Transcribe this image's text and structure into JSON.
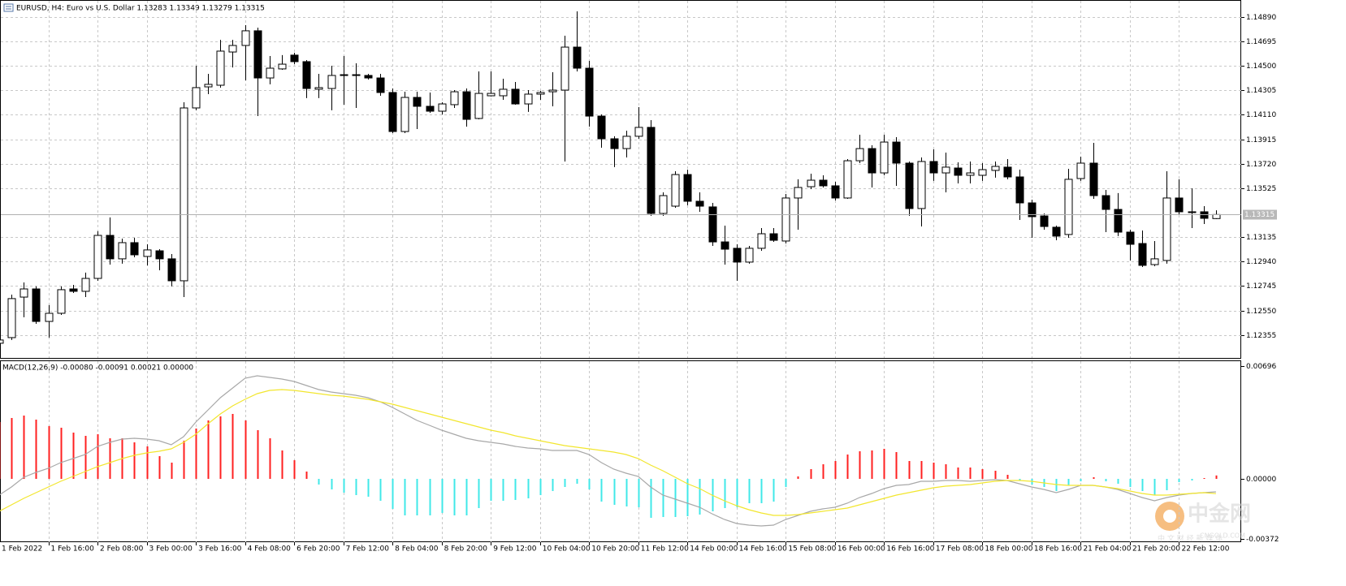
{
  "header": {
    "symbol_title": "EURUSD, H4:  Euro vs U.S. Dollar   1.13283 1.13349 1.13279 1.13315"
  },
  "watermark": {
    "brand": "中金网",
    "domain": "CNGOLD.COM",
    "tagline": "中 文 财 经 新 媒 体"
  },
  "chart_data": [
    {
      "type": "candlestick",
      "up_color": "#ffffff",
      "down_color": "#000000",
      "wick_color": "#000000",
      "categories": [
        "1 Feb 2022",
        null,
        null,
        null,
        "1 Feb 16:00",
        null,
        null,
        null,
        "2 Feb 08:00",
        null,
        null,
        null,
        "3 Feb 00:00",
        null,
        null,
        null,
        "3 Feb 16:00",
        null,
        null,
        null,
        "4 Feb 08:00",
        null,
        null,
        null,
        "6 Feb 20:00",
        null,
        null,
        null,
        "7 Feb 12:00",
        null,
        null,
        null,
        "8 Feb 04:00",
        null,
        null,
        null,
        "8 Feb 20:00",
        null,
        null,
        null,
        "9 Feb 12:00",
        null,
        null,
        null,
        "10 Feb 04:00",
        null,
        null,
        null,
        "10 Feb 20:00",
        null,
        null,
        null,
        "11 Feb 12:00",
        null,
        null,
        null,
        "14 Feb 00:00",
        null,
        null,
        null,
        "14 Feb 16:00",
        null,
        null,
        null,
        "15 Feb 08:00",
        null,
        null,
        null,
        "16 Feb 00:00",
        null,
        null,
        null,
        "16 Feb 16:00",
        null,
        null,
        null,
        "17 Feb 08:00",
        null,
        null,
        null,
        "18 Feb 00:00",
        null,
        null,
        null,
        "18 Feb 16:00",
        null,
        null,
        null,
        "21 Feb 04:00",
        null,
        null,
        null,
        "21 Feb 20:00",
        null,
        null,
        null,
        "22 Feb 12:00",
        null,
        null,
        null
      ],
      "open": [
        1.12289,
        1.12334,
        1.12657,
        1.12722,
        1.12463,
        1.12528,
        1.12722,
        1.12703,
        1.12806,
        1.13149,
        1.12962,
        1.13091,
        1.12981,
        1.13026,
        1.12962,
        1.12787,
        1.14165,
        1.14333,
        1.14346,
        1.14611,
        1.14663,
        1.1478,
        1.14404,
        1.14476,
        1.14586,
        1.14534,
        1.14314,
        1.1432,
        1.14424,
        1.1443,
        1.14424,
        1.14404,
        1.14288,
        1.13977,
        1.14249,
        1.14178,
        1.14139,
        1.14191,
        1.14294,
        1.14081,
        1.14262,
        1.14262,
        1.14314,
        1.14197,
        1.14275,
        1.14294,
        1.14307,
        1.1465,
        1.14482,
        1.141,
        1.13919,
        1.13841,
        1.13939,
        1.1401,
        1.13324,
        1.13382,
        1.13634,
        1.13421,
        1.13376,
        1.13097,
        1.13046,
        1.12936,
        1.13046,
        1.13162,
        1.13104,
        1.13447,
        1.13537,
        1.13589,
        1.13544,
        1.13447,
        1.13744,
        1.13841,
        1.13647,
        1.13893,
        1.13725,
        1.13363,
        1.13738,
        1.13647,
        1.13686,
        1.13628,
        1.13628,
        1.13667,
        1.13693,
        1.13615,
        1.13408,
        1.13304,
        1.13214,
        1.13156,
        1.13602,
        1.13725,
        1.13466,
        1.13356,
        1.13175,
        1.13084,
        1.12916,
        1.12949,
        1.13447,
        1.13337,
        1.13337,
        1.13283
      ],
      "high": [
        1.12334,
        1.12677,
        1.12774,
        1.12742,
        1.12593,
        1.12742,
        1.12754,
        1.12852,
        1.13182,
        1.13292,
        1.13123,
        1.1313,
        1.13078,
        1.13039,
        1.13,
        1.1421,
        1.14501,
        1.14437,
        1.14708,
        1.14708,
        1.14825,
        1.14805,
        1.14579,
        1.14586,
        1.14605,
        1.14547,
        1.14437,
        1.14501,
        1.14579,
        1.14521,
        1.14437,
        1.14437,
        1.1432,
        1.14294,
        1.14294,
        1.14288,
        1.1421,
        1.14307,
        1.1432,
        1.14456,
        1.14456,
        1.14398,
        1.14372,
        1.14307,
        1.14301,
        1.1445,
        1.14741,
        1.14935,
        1.1454,
        1.14113,
        1.13939,
        1.13984,
        1.14171,
        1.14068,
        1.13492,
        1.1366,
        1.13673,
        1.13492,
        1.13408,
        1.13227,
        1.13078,
        1.13065,
        1.13207,
        1.13207,
        1.13479,
        1.13596,
        1.13641,
        1.13628,
        1.13576,
        1.13757,
        1.13951,
        1.13867,
        1.13951,
        1.13932,
        1.13738,
        1.1377,
        1.13835,
        1.13809,
        1.13731,
        1.13738,
        1.13725,
        1.13738,
        1.13757,
        1.13673,
        1.13434,
        1.13324,
        1.13227,
        1.1368,
        1.13777,
        1.13887,
        1.13511,
        1.13486,
        1.13194,
        1.13188,
        1.13104,
        1.1366,
        1.13596,
        1.13524,
        1.13382,
        1.13349
      ],
      "low": [
        1.12269,
        1.12315,
        1.12496,
        1.12444,
        1.12334,
        1.12515,
        1.1269,
        1.12657,
        1.12787,
        1.12916,
        1.12923,
        1.12974,
        1.1291,
        1.12871,
        1.12742,
        1.12657,
        1.14146,
        1.14275,
        1.14327,
        1.14488,
        1.14385,
        1.141,
        1.14353,
        1.14469,
        1.14514,
        1.14243,
        1.14243,
        1.14146,
        1.14191,
        1.14165,
        1.14391,
        1.14262,
        1.13964,
        1.13964,
        1.13997,
        1.14126,
        1.14113,
        1.14165,
        1.14016,
        1.14074,
        1.14256,
        1.1423,
        1.14191,
        1.14133,
        1.1423,
        1.14178,
        1.13738,
        1.14456,
        1.14016,
        1.13848,
        1.13693,
        1.1377,
        1.13919,
        1.13304,
        1.13304,
        1.13369,
        1.13389,
        1.13337,
        1.13065,
        1.12916,
        1.12787,
        1.12923,
        1.13026,
        1.13097,
        1.13084,
        1.13194,
        1.13518,
        1.13531,
        1.13427,
        1.1344,
        1.13725,
        1.13531,
        1.13628,
        1.13544,
        1.13304,
        1.1322,
        1.13583,
        1.13492,
        1.13563,
        1.13563,
        1.13583,
        1.13609,
        1.13596,
        1.13272,
        1.1313,
        1.13194,
        1.1311,
        1.1313,
        1.13583,
        1.1344,
        1.13175,
        1.13143,
        1.12949,
        1.12897,
        1.12903,
        1.12923,
        1.13317,
        1.13207,
        1.1324,
        1.13279
      ],
      "close": [
        1.12315,
        1.12645,
        1.12722,
        1.12463,
        1.12528,
        1.12716,
        1.12703,
        1.12806,
        1.13149,
        1.12962,
        1.13091,
        1.12994,
        1.13033,
        1.12962,
        1.12787,
        1.14165,
        1.14327,
        1.14353,
        1.14618,
        1.14663,
        1.1478,
        1.14404,
        1.14482,
        1.14514,
        1.14534,
        1.1432,
        1.14327,
        1.14424,
        1.1443,
        1.1443,
        1.14404,
        1.14288,
        1.13977,
        1.14249,
        1.14178,
        1.14139,
        1.14197,
        1.14294,
        1.14074,
        1.14281,
        1.14281,
        1.14314,
        1.14197,
        1.14275,
        1.14288,
        1.14307,
        1.1465,
        1.14482,
        1.141,
        1.13919,
        1.13841,
        1.13939,
        1.1401,
        1.13324,
        1.13466,
        1.13634,
        1.13421,
        1.13382,
        1.13097,
        1.13039,
        1.12936,
        1.13046,
        1.13162,
        1.1311,
        1.13447,
        1.13531,
        1.13589,
        1.13544,
        1.13447,
        1.13744,
        1.13841,
        1.13647,
        1.13893,
        1.13725,
        1.13363,
        1.13738,
        1.13647,
        1.13693,
        1.13628,
        1.13647,
        1.13673,
        1.13699,
        1.13615,
        1.13408,
        1.13298,
        1.1322,
        1.13143,
        1.13596,
        1.13725,
        1.13466,
        1.13356,
        1.13175,
        1.13078,
        1.1291,
        1.12962,
        1.13447,
        1.13337,
        1.13337,
        1.13285,
        1.13315
      ],
      "ylim": [
        1.12172,
        1.15019
      ],
      "yticks": [
        {
          "value": 1.1489,
          "label": "1.14890"
        },
        {
          "value": 1.14695,
          "label": "1.14695"
        },
        {
          "value": 1.145,
          "label": "1.14500"
        },
        {
          "value": 1.14305,
          "label": "1.14305"
        },
        {
          "value": 1.1411,
          "label": "1.14110"
        },
        {
          "value": 1.13915,
          "label": "1.13915"
        },
        {
          "value": 1.1372,
          "label": "1.13720"
        },
        {
          "value": 1.13525,
          "label": "1.13525"
        },
        {
          "value": 1.13135,
          "label": "1.13135"
        },
        {
          "value": 1.1294,
          "label": "1.12940"
        },
        {
          "value": 1.12745,
          "label": "1.12745"
        },
        {
          "value": 1.1255,
          "label": "1.12550"
        },
        {
          "value": 1.12355,
          "label": "1.12355"
        }
      ],
      "last_price": {
        "value": 1.13315,
        "label": "1.13315"
      },
      "grid": true
    },
    {
      "type": "macd",
      "title": "MACD(12,26,9) -0.00080 -0.00091 0.00021 0.00000",
      "ylim": [
        -0.0039,
        0.00725
      ],
      "yticks": [
        {
          "value": 0.00696,
          "label": "0.00696"
        },
        {
          "value": 0,
          "label": "0.00000"
        },
        {
          "value": -0.00372,
          "label": "-0.00372"
        }
      ],
      "series": [
        {
          "type": "bar",
          "color": "#ff2020",
          "negative_color": "#40e8e8",
          "values": [
            0.0035,
            0.00375,
            0.0039,
            0.00365,
            0.00325,
            0.00315,
            0.00285,
            0.00265,
            0.00275,
            0.0025,
            0.0025,
            0.00225,
            0.002,
            0.0014,
            0.001,
            0.00235,
            0.0031,
            0.0036,
            0.00385,
            0.004,
            0.0036,
            0.003,
            0.0025,
            0.00175,
            0.00115,
            0.00045,
            -0.00035,
            -0.00065,
            -0.00085,
            -0.001,
            -0.0011,
            -0.00135,
            -0.00185,
            -0.00225,
            -0.00225,
            -0.00225,
            -0.0021,
            -0.00225,
            -0.00225,
            -0.0018,
            -0.00135,
            -0.00135,
            -0.0013,
            -0.0012,
            -0.001,
            -0.00075,
            -0.0005,
            -0.0003,
            -0.00065,
            -0.0014,
            -0.0016,
            -0.0017,
            -0.00175,
            -0.0024,
            -0.00235,
            -0.00235,
            -0.0023,
            -0.0022,
            -0.002,
            -0.0018,
            -0.00175,
            -0.0015,
            -0.0015,
            -0.0014,
            -0.0005,
            0.00015,
            0.0006,
            0.0009,
            0.0011,
            0.0015,
            0.0017,
            0.00175,
            0.00185,
            0.00165,
            0.0011,
            0.0011,
            0.001,
            0.0009,
            0.0007,
            0.0007,
            0.0006,
            0.0005,
            0.00025,
            -0.0001,
            -0.00035,
            -0.0005,
            -0.00075,
            -0.0004,
            -0.00015,
            0.0001,
            -0.00015,
            -0.0003,
            -0.0005,
            -0.00075,
            -0.001,
            -0.0007,
            -0.0002,
            -0.0001,
            5e-05,
            0.00021
          ]
        },
        {
          "type": "line",
          "color": "#a8a8a8",
          "values": [
            -0.001,
            -0.0005,
            0.0001,
            0.0004,
            0.00065,
            0.001,
            0.00125,
            0.0015,
            0.002,
            0.00225,
            0.00245,
            0.0025,
            0.00245,
            0.00235,
            0.0021,
            0.0026,
            0.0035,
            0.00425,
            0.005,
            0.0056,
            0.0062,
            0.00635,
            0.00625,
            0.00615,
            0.006,
            0.00575,
            0.0055,
            0.00535,
            0.00525,
            0.00515,
            0.005,
            0.00475,
            0.0044,
            0.004,
            0.0036,
            0.0033,
            0.003,
            0.00275,
            0.0025,
            0.00235,
            0.00225,
            0.00215,
            0.002,
            0.0019,
            0.00185,
            0.00175,
            0.00175,
            0.00175,
            0.0015,
            0.001,
            0.0006,
            0.00035,
            0.00015,
            -0.0005,
            -0.001,
            -0.00125,
            -0.0015,
            -0.00175,
            -0.00215,
            -0.0025,
            -0.00275,
            -0.00285,
            -0.0029,
            -0.00285,
            -0.0025,
            -0.00225,
            -0.002,
            -0.00185,
            -0.00175,
            -0.0015,
            -0.00115,
            -0.0009,
            -0.0006,
            -0.0004,
            -0.00035,
            -0.00015,
            -0.00015,
            -0.0001,
            -0.0001,
            -0.00015,
            -0.0001,
            -5e-05,
            -0.0001,
            -0.0003,
            -0.0005,
            -0.00065,
            -0.00085,
            -0.00065,
            -0.0004,
            -0.0004,
            -0.0005,
            -0.00065,
            -0.0009,
            -0.00115,
            -0.00135,
            -0.00115,
            -0.001,
            -0.0009,
            -0.00085,
            -0.0008
          ]
        },
        {
          "type": "line",
          "color": "#f2e62e",
          "values": [
            -0.002,
            -0.0016,
            -0.0012,
            -0.00085,
            -0.0005,
            -0.00015,
            0.00015,
            0.00045,
            0.00075,
            0.001,
            0.00125,
            0.00145,
            0.0016,
            0.0017,
            0.00185,
            0.00225,
            0.00275,
            0.0034,
            0.004,
            0.0045,
            0.0049,
            0.00525,
            0.00545,
            0.0055,
            0.00545,
            0.00535,
            0.00525,
            0.00515,
            0.0051,
            0.005,
            0.0049,
            0.00475,
            0.0046,
            0.0044,
            0.0042,
            0.004,
            0.0038,
            0.0036,
            0.0034,
            0.0032,
            0.003,
            0.00285,
            0.00265,
            0.0025,
            0.00235,
            0.0022,
            0.00205,
            0.00195,
            0.00185,
            0.00175,
            0.00165,
            0.0015,
            0.00125,
            0.00085,
            0.0005,
            0.0001,
            -0.0003,
            -0.0006,
            -0.001,
            -0.00135,
            -0.00165,
            -0.0019,
            -0.0021,
            -0.00225,
            -0.00225,
            -0.0022,
            -0.0021,
            -0.002,
            -0.0019,
            -0.0018,
            -0.0016,
            -0.0014,
            -0.0012,
            -0.001,
            -0.00085,
            -0.0007,
            -0.00055,
            -0.00045,
            -0.0004,
            -0.00035,
            -0.00025,
            -0.00015,
            -0.0001,
            -0.0001,
            -0.00015,
            -0.00025,
            -0.00035,
            -0.0004,
            -0.0004,
            -0.0004,
            -0.0005,
            -0.0006,
            -0.00075,
            -0.0009,
            -0.001,
            -0.001,
            -0.00095,
            -0.0009,
            -0.00085,
            -0.00091
          ]
        }
      ]
    }
  ]
}
